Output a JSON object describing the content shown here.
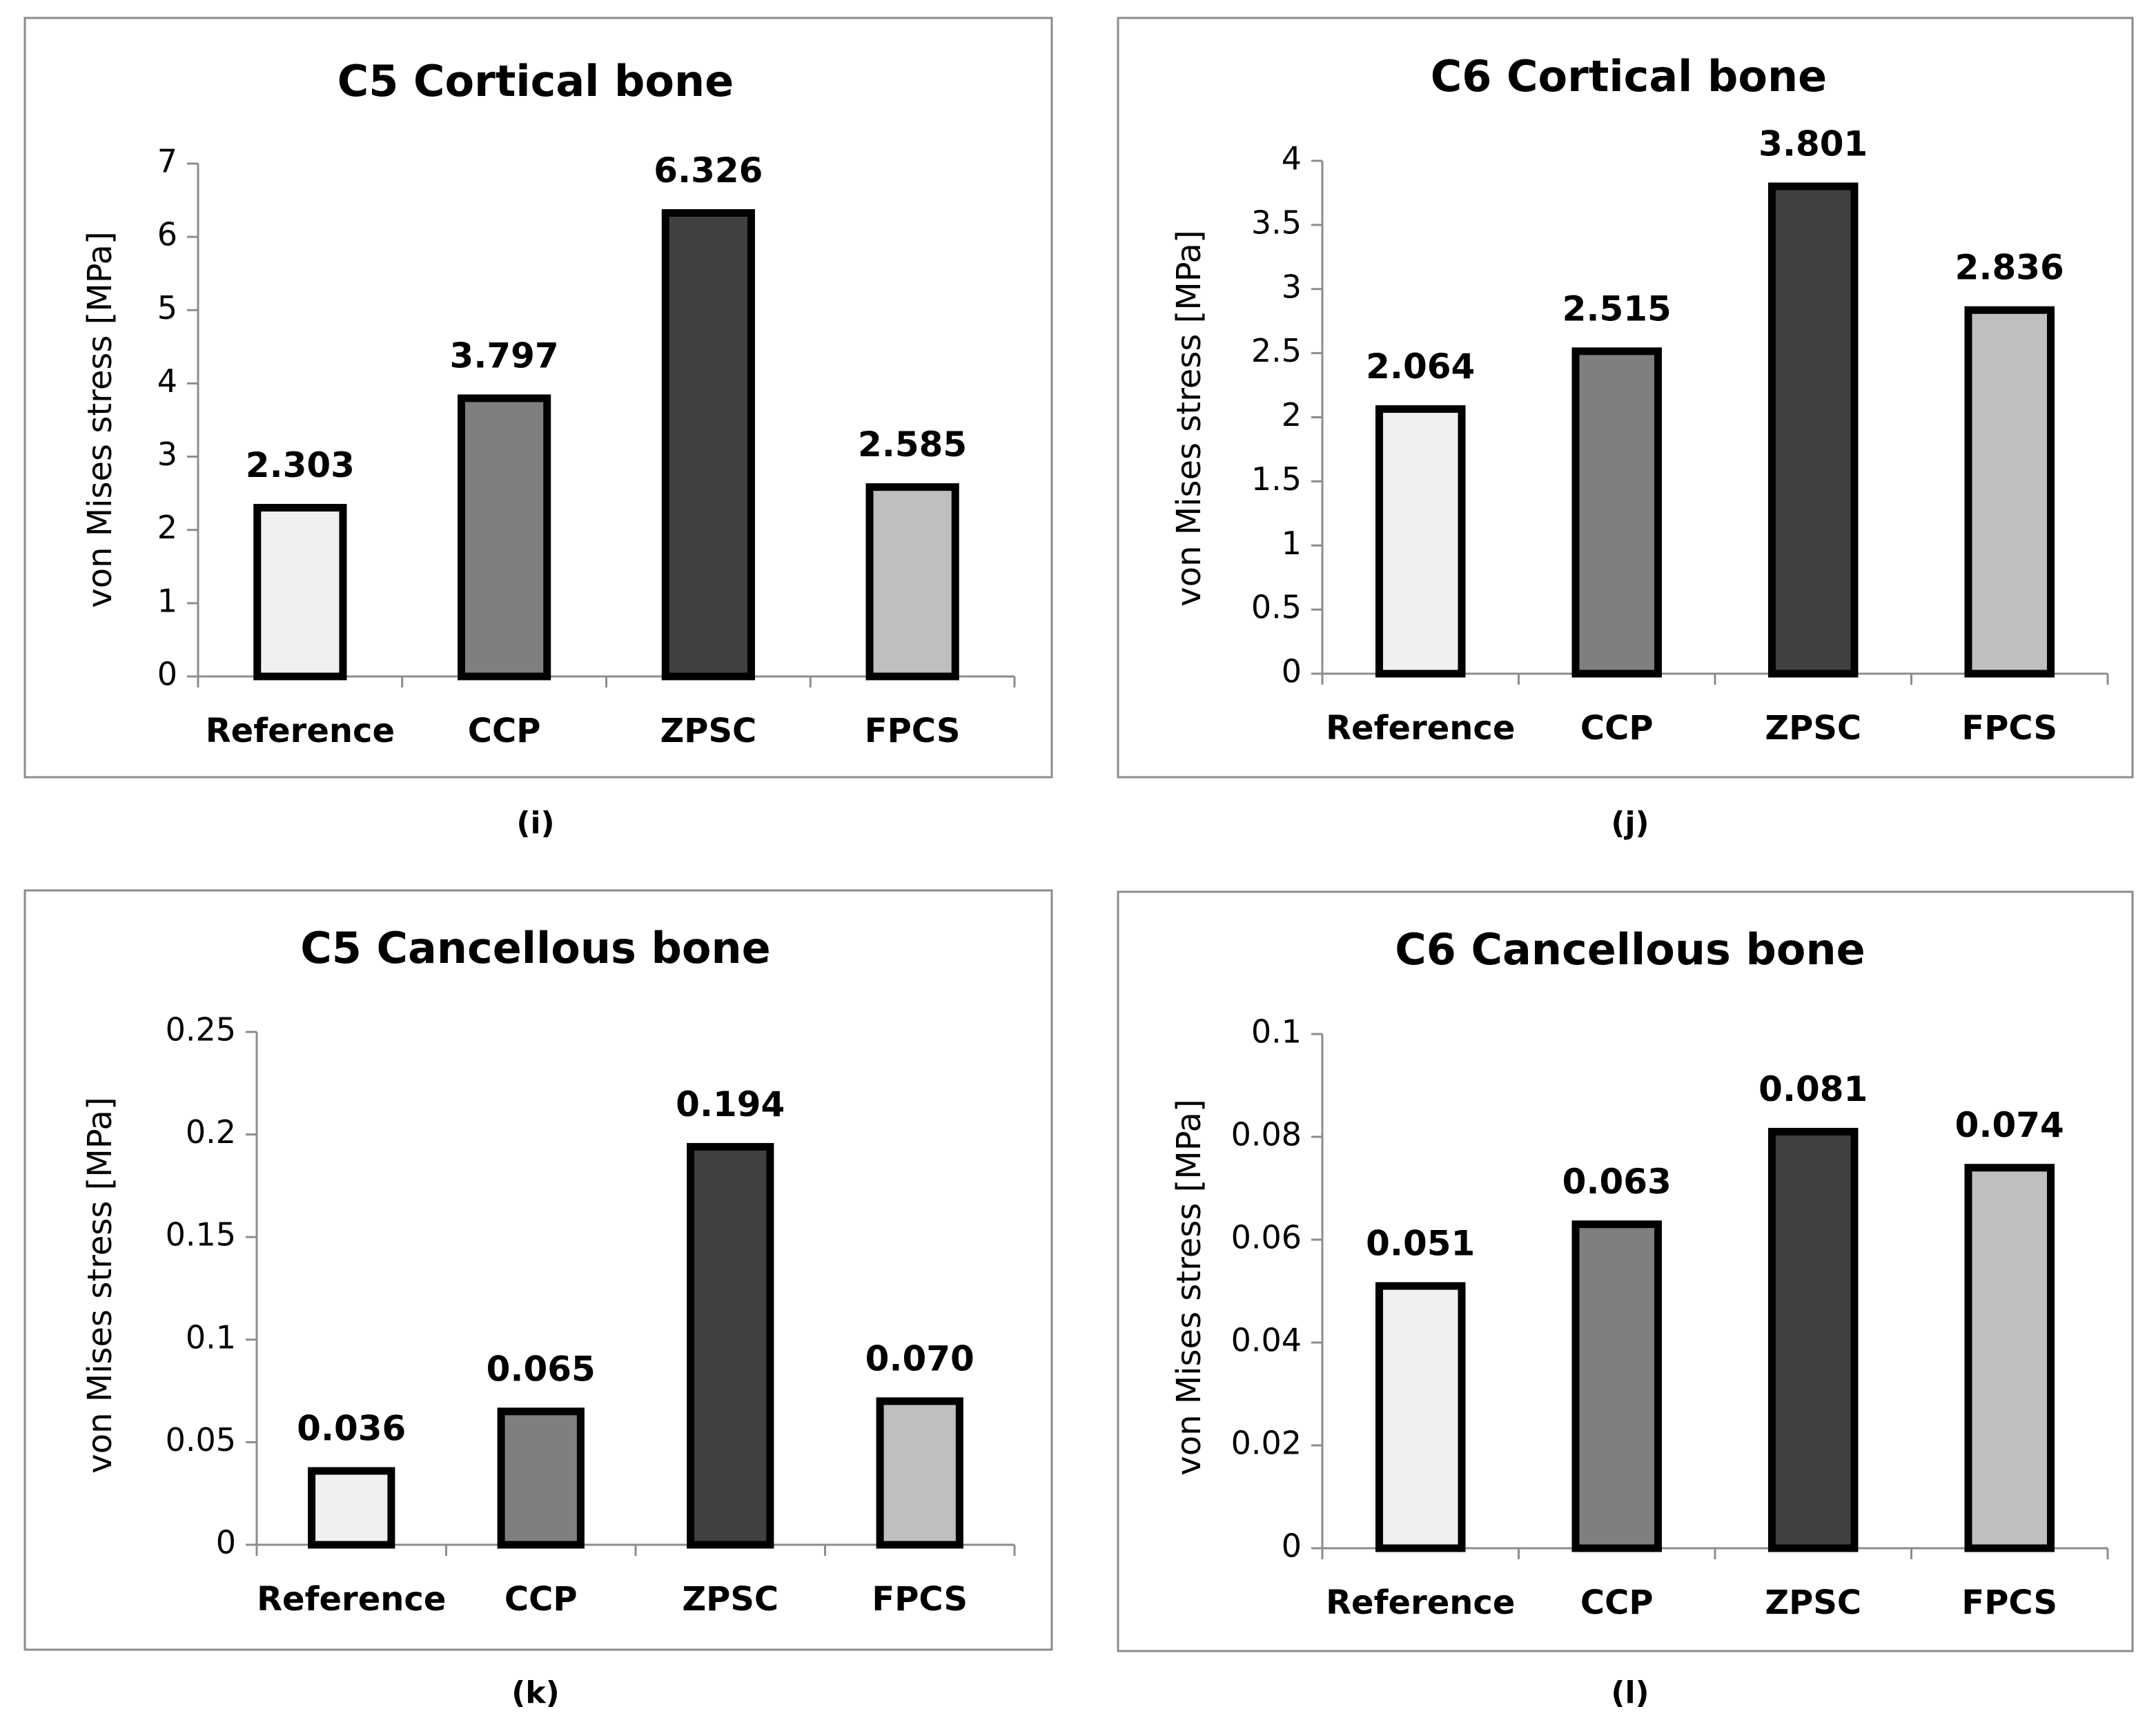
{
  "chart_data": [
    {
      "type": "bar",
      "title": "C5 Cortical bone",
      "panel_label": "(i)",
      "ylabel": "von Mises stress [MPa]",
      "xlabel": "",
      "categories": [
        "Reference",
        "CCP",
        "ZPSC",
        "FPCS"
      ],
      "values": [
        2.303,
        3.797,
        6.326,
        2.585
      ],
      "value_labels": [
        "2.303",
        "3.797",
        "6.326",
        "2.585"
      ],
      "ylim": [
        0,
        7
      ],
      "yticks": [
        "0",
        "1",
        "2",
        "3",
        "4",
        "5",
        "6",
        "7"
      ],
      "grid": false
    },
    {
      "type": "bar",
      "title": "C6 Cortical bone",
      "panel_label": "(j)",
      "ylabel": "von Mises stress [MPa]",
      "xlabel": "",
      "categories": [
        "Reference",
        "CCP",
        "ZPSC",
        "FPCS"
      ],
      "values": [
        2.064,
        2.515,
        3.801,
        2.836
      ],
      "value_labels": [
        "2.064",
        "2.515",
        "3.801",
        "2.836"
      ],
      "ylim": [
        0,
        4
      ],
      "yticks": [
        "0",
        "0.5",
        "1",
        "1.5",
        "2",
        "2.5",
        "3",
        "3.5",
        "4"
      ],
      "grid": false
    },
    {
      "type": "bar",
      "title": "C5 Cancellous bone",
      "panel_label": "(k)",
      "ylabel": "von Mises stress [MPa]",
      "xlabel": "",
      "categories": [
        "Reference",
        "CCP",
        "ZPSC",
        "FPCS"
      ],
      "values": [
        0.036,
        0.065,
        0.194,
        0.07
      ],
      "value_labels": [
        "0.036",
        "0.065",
        "0.194",
        "0.070"
      ],
      "ylim": [
        0,
        0.25
      ],
      "yticks": [
        "0",
        "0.05",
        "0.1",
        "0.15",
        "0.2",
        "0.25"
      ],
      "grid": false
    },
    {
      "type": "bar",
      "title": "C6 Cancellous bone",
      "panel_label": "(l)",
      "ylabel": "von Mises stress [MPa]",
      "xlabel": "",
      "categories": [
        "Reference",
        "CCP",
        "ZPSC",
        "FPCS"
      ],
      "values": [
        0.051,
        0.063,
        0.081,
        0.074
      ],
      "value_labels": [
        "0.051",
        "0.063",
        "0.081",
        "0.074"
      ],
      "ylim": [
        0,
        0.1
      ],
      "yticks": [
        "0",
        "0.02",
        "0.04",
        "0.06",
        "0.08",
        "0.1"
      ],
      "grid": false
    }
  ],
  "colors": {
    "bar_fills": [
      "#f0f0f0",
      "#7f7f7f",
      "#404040",
      "#bfbfbf"
    ],
    "bar_stroke": "#000000",
    "frame": "#8c8c8c",
    "axis": "#8c8c8c",
    "text": "#000000"
  }
}
